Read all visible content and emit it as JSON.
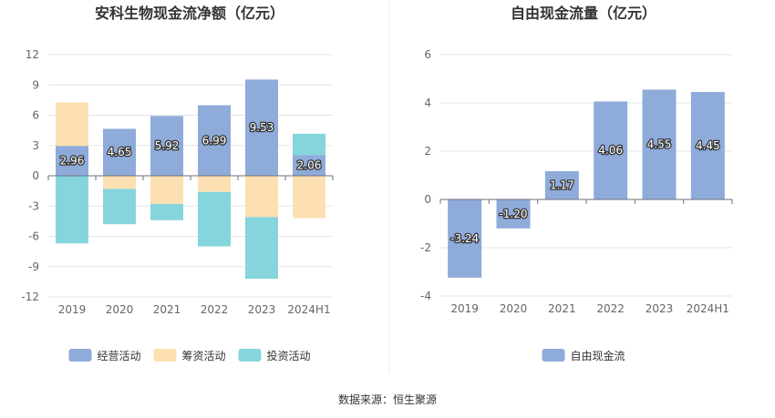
{
  "source": "数据来源：恒生聚源",
  "colors": {
    "operating": "#8eabda",
    "financing": "#fde0b1",
    "investing": "#86d5dc",
    "fcf": "#8eabda",
    "grid": "#e6e6e6",
    "axis": "#6e7079"
  },
  "chart_data": [
    {
      "type": "bar",
      "title": "安科生物现金流净额（亿元）",
      "stacked": true,
      "categories": [
        "2019",
        "2020",
        "2021",
        "2022",
        "2023",
        "2024H1"
      ],
      "ylim": [
        -12,
        12
      ],
      "yticks": [
        12,
        9,
        6,
        3,
        0,
        -3,
        -6,
        -9,
        -12
      ],
      "legend_position": "bottom",
      "series": [
        {
          "name": "经营活动",
          "key": "operating",
          "values": [
            2.96,
            4.65,
            5.92,
            6.99,
            9.53,
            2.06
          ],
          "labeled": true
        },
        {
          "name": "筹资活动",
          "key": "financing",
          "values": [
            4.3,
            -1.3,
            -2.8,
            -1.6,
            -4.1,
            -4.2
          ],
          "labeled": false
        },
        {
          "name": "投资活动",
          "key": "investing",
          "values": [
            -6.7,
            -3.5,
            -1.6,
            -5.4,
            -6.1,
            2.1
          ],
          "labeled": false
        }
      ],
      "data_labels": [
        "2.96",
        "4.65",
        "5.92",
        "6.99",
        "9.53",
        "2.06"
      ]
    },
    {
      "type": "bar",
      "title": "自由现金流量（亿元）",
      "stacked": false,
      "categories": [
        "2019",
        "2020",
        "2021",
        "2022",
        "2023",
        "2024H1"
      ],
      "ylim": [
        -4,
        6
      ],
      "yticks": [
        6,
        4,
        2,
        0,
        -2,
        -4
      ],
      "legend_position": "bottom",
      "series": [
        {
          "name": "自由现金流",
          "key": "fcf",
          "values": [
            -3.24,
            -1.2,
            1.17,
            4.06,
            4.55,
            4.45
          ],
          "labeled": true
        }
      ],
      "data_labels": [
        "-3.24",
        "-1.20",
        "1.17",
        "4.06",
        "4.55",
        "4.45"
      ]
    }
  ]
}
